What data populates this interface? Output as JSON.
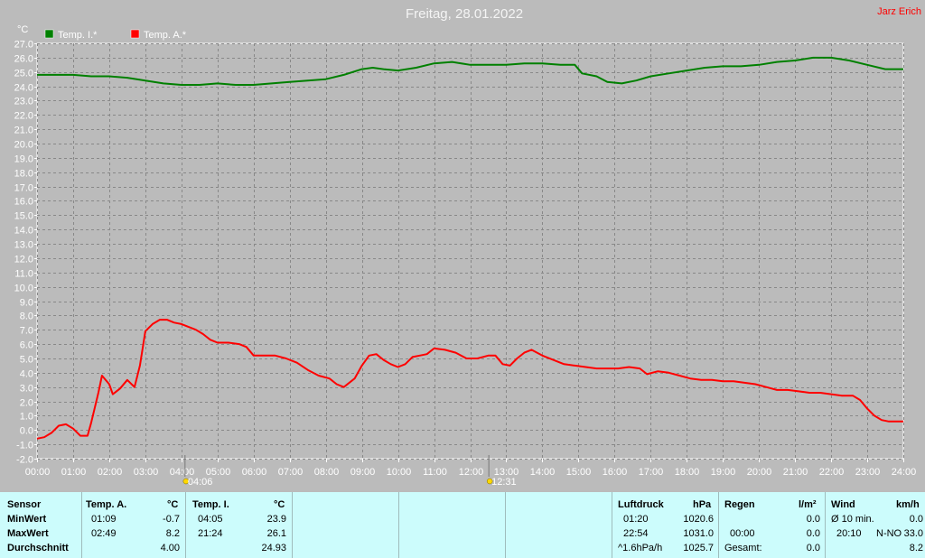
{
  "title": "Freitag, 28.01.2022",
  "author": "Jarz Erich",
  "chart_data": {
    "type": "line",
    "ylabel": "°C",
    "ylim": [
      -2.0,
      27.0
    ],
    "ytick_step": 1.0,
    "xlim": [
      0,
      24
    ],
    "x_tick_labels": [
      "00:00",
      "01:00",
      "02:00",
      "03:00",
      "04:00",
      "05:00",
      "06:00",
      "07:00",
      "08:00",
      "09:00",
      "10:00",
      "11:00",
      "12:00",
      "13:00",
      "14:00",
      "15:00",
      "16:00",
      "17:00",
      "18:00",
      "19:00",
      "20:00",
      "21:00",
      "22:00",
      "23:00",
      "24:00"
    ],
    "grid": true,
    "legend_position": "top-left",
    "series": [
      {
        "name": "Temp. I.*",
        "color": "#008000",
        "x": [
          0,
          0.5,
          1,
          1.5,
          2,
          2.5,
          3,
          3.5,
          4,
          4.5,
          5,
          5.5,
          6,
          6.5,
          7,
          7.5,
          8,
          8.5,
          9,
          9.3,
          9.6,
          10,
          10.5,
          11,
          11.5,
          12,
          12.5,
          13,
          13.5,
          14,
          14.5,
          14.9,
          15.1,
          15.5,
          15.8,
          16.2,
          16.6,
          17,
          17.5,
          18,
          18.5,
          19,
          19.5,
          20,
          20.5,
          21,
          21.5,
          22,
          22.5,
          23,
          23.5,
          24
        ],
        "values": [
          24.8,
          24.8,
          24.8,
          24.7,
          24.7,
          24.6,
          24.4,
          24.2,
          24.1,
          24.1,
          24.2,
          24.1,
          24.1,
          24.2,
          24.3,
          24.4,
          24.5,
          24.8,
          25.2,
          25.3,
          25.2,
          25.1,
          25.3,
          25.6,
          25.7,
          25.5,
          25.5,
          25.5,
          25.6,
          25.6,
          25.5,
          25.5,
          24.9,
          24.7,
          24.3,
          24.2,
          24.4,
          24.7,
          24.9,
          25.1,
          25.3,
          25.4,
          25.4,
          25.5,
          25.7,
          25.8,
          26.0,
          26.0,
          25.8,
          25.5,
          25.2,
          25.2
        ]
      },
      {
        "name": "Temp. A.*",
        "color": "#ff0000",
        "x": [
          0,
          0.2,
          0.4,
          0.6,
          0.8,
          1.0,
          1.2,
          1.4,
          1.5,
          1.7,
          1.8,
          2.0,
          2.1,
          2.3,
          2.5,
          2.7,
          2.85,
          3.0,
          3.2,
          3.4,
          3.6,
          3.8,
          4.0,
          4.2,
          4.4,
          4.6,
          4.8,
          5.0,
          5.3,
          5.6,
          5.8,
          6.0,
          6.3,
          6.6,
          6.9,
          7.2,
          7.5,
          7.8,
          8.1,
          8.3,
          8.5,
          8.8,
          9.0,
          9.2,
          9.4,
          9.6,
          9.8,
          10.0,
          10.2,
          10.4,
          10.6,
          10.8,
          11.0,
          11.3,
          11.6,
          11.9,
          12.2,
          12.5,
          12.7,
          12.9,
          13.1,
          13.3,
          13.5,
          13.7,
          14.0,
          14.3,
          14.6,
          14.9,
          15.2,
          15.5,
          15.8,
          16.1,
          16.4,
          16.7,
          16.9,
          17.2,
          17.5,
          17.8,
          18.1,
          18.4,
          18.7,
          19.0,
          19.3,
          19.6,
          19.9,
          20.2,
          20.5,
          20.8,
          21.1,
          21.4,
          21.7,
          22.0,
          22.3,
          22.6,
          22.8,
          23.0,
          23.2,
          23.4,
          23.6,
          23.8,
          24.0
        ],
        "values": [
          -0.6,
          -0.5,
          -0.2,
          0.3,
          0.4,
          0.1,
          -0.4,
          -0.4,
          0.5,
          2.6,
          3.8,
          3.2,
          2.5,
          2.9,
          3.5,
          3.0,
          4.5,
          6.9,
          7.4,
          7.7,
          7.7,
          7.5,
          7.4,
          7.2,
          7.0,
          6.7,
          6.3,
          6.1,
          6.1,
          6.0,
          5.8,
          5.2,
          5.2,
          5.2,
          5.0,
          4.7,
          4.2,
          3.8,
          3.6,
          3.2,
          3.0,
          3.6,
          4.5,
          5.2,
          5.3,
          4.9,
          4.6,
          4.4,
          4.6,
          5.1,
          5.2,
          5.3,
          5.7,
          5.6,
          5.4,
          5.0,
          5.0,
          5.2,
          5.2,
          4.6,
          4.5,
          5.0,
          5.4,
          5.6,
          5.2,
          4.9,
          4.6,
          4.5,
          4.4,
          4.3,
          4.3,
          4.3,
          4.4,
          4.3,
          3.9,
          4.1,
          4.0,
          3.8,
          3.6,
          3.5,
          3.5,
          3.4,
          3.4,
          3.3,
          3.2,
          3.0,
          2.8,
          2.8,
          2.7,
          2.6,
          2.6,
          2.5,
          2.4,
          2.4,
          2.1,
          1.5,
          1.0,
          0.7,
          0.6,
          0.6,
          0.6
        ]
      }
    ],
    "sun_markers": [
      {
        "label": "04:06",
        "hour": 4.1
      },
      {
        "label": "12:31",
        "hour": 12.5167
      }
    ]
  },
  "table": {
    "sensor": {
      "header": "Sensor",
      "min": "MinWert",
      "max": "MaxWert",
      "avg": "Durchschnitt"
    },
    "temp_a": {
      "header": "Temp. A.",
      "unit": "°C",
      "min_time": "01:09",
      "min_val": "-0.7",
      "max_time": "02:49",
      "max_val": "8.2",
      "avg_val": "4.00"
    },
    "temp_i": {
      "header": "Temp. I.",
      "unit": "°C",
      "min_time": "04:05",
      "min_val": "23.9",
      "max_time": "21:24",
      "max_val": "26.1",
      "avg_val": "24.93"
    },
    "pressure": {
      "header": "Luftdruck",
      "unit": "hPa",
      "min_time": "01:20",
      "min_val": "1020.6",
      "max_time": "22:54",
      "max_val": "1031.0",
      "trend": "^1.6hPa/h",
      "current": "1025.7"
    },
    "rain": {
      "header": "Regen",
      "unit": "l/m²",
      "time": "00:00",
      "val": "0.0",
      "val2": "0.0",
      "total_label": "Gesamt:",
      "total_val": "0.0"
    },
    "wind": {
      "header": "Wind",
      "unit": "km/h",
      "avg_label": "Ø 10 min.",
      "avg_val": "0.0",
      "max_time": "20:10",
      "max_dir": "N-NO",
      "max_val": "33.0",
      "last_val": "8.2"
    }
  }
}
